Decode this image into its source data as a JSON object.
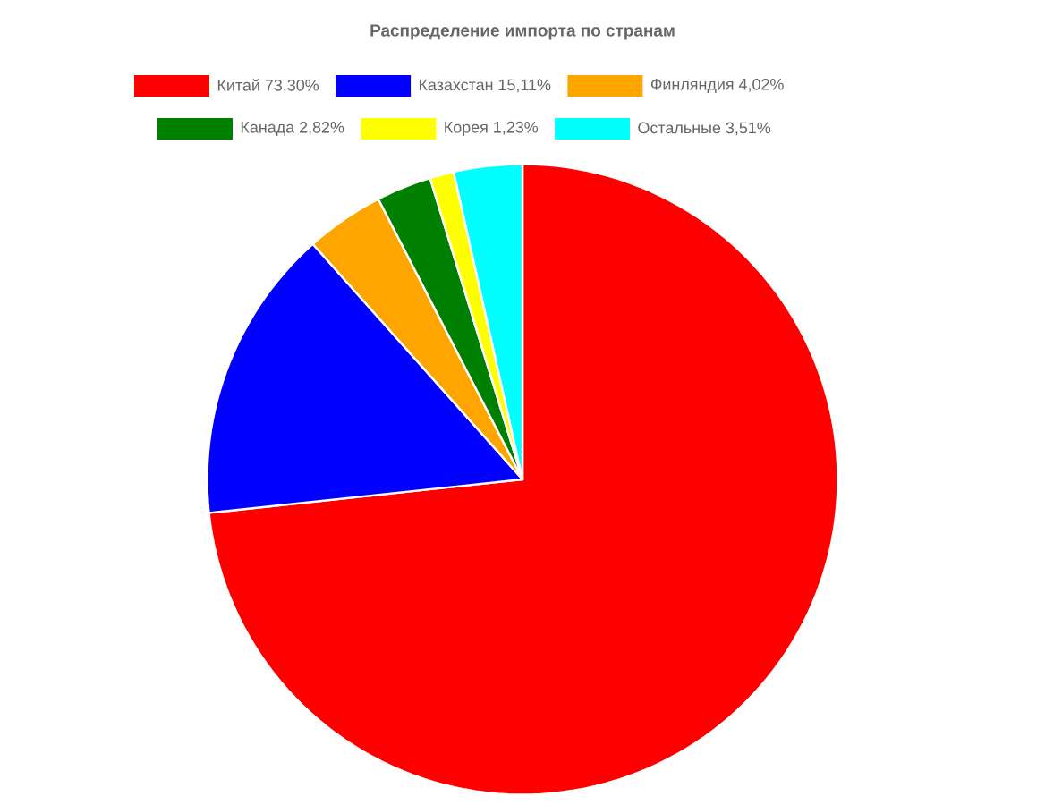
{
  "chart_data": {
    "type": "pie",
    "title": "Распределение импорта по странам",
    "categories": [
      "Китай 73,30%",
      "Казахстан 15,11%",
      "Финляндия 4,02%",
      "Канада 2,82%",
      "Корея 1,23%",
      "Остальные 3,51%"
    ],
    "values": [
      73.3,
      15.11,
      4.02,
      2.82,
      1.23,
      3.51
    ],
    "colors": [
      "#ff0000",
      "#0000ff",
      "#ffa500",
      "#008000",
      "#ffff00",
      "#00ffff"
    ],
    "legend": "top"
  }
}
